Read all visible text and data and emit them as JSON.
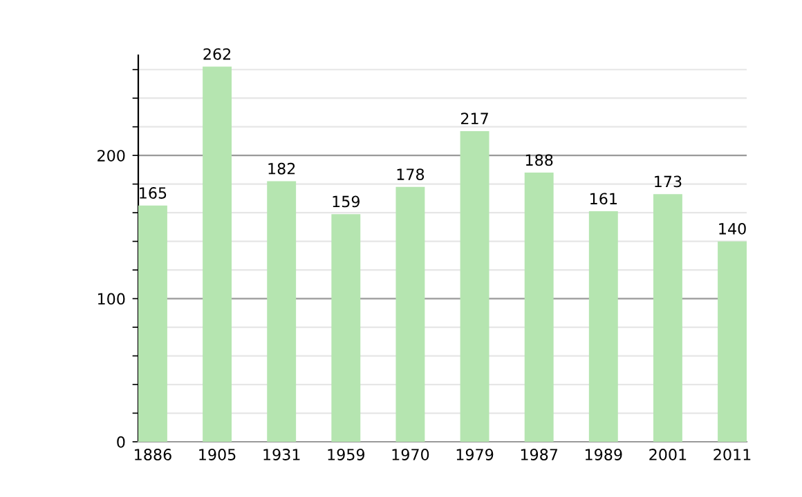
{
  "chart_data": {
    "type": "bar",
    "categories": [
      "1886",
      "1905",
      "1931",
      "1959",
      "1970",
      "1979",
      "1987",
      "1989",
      "2001",
      "2011"
    ],
    "values": [
      165,
      262,
      182,
      159,
      178,
      217,
      188,
      161,
      173,
      140
    ],
    "color": "#b5e5b0",
    "data_labels": true,
    "ylim": [
      0,
      270
    ],
    "yticks": [
      0,
      {
        "value": 20,
        "label": null
      },
      {
        "value": 40,
        "label": null
      },
      {
        "value": 60,
        "label": null
      },
      {
        "value": 80,
        "label": null
      },
      100,
      {
        "value": 120,
        "label": null
      },
      {
        "value": 140,
        "label": null
      },
      {
        "value": 160,
        "label": null
      },
      {
        "value": 180,
        "label": null
      },
      200,
      {
        "value": 220,
        "label": null
      },
      {
        "value": 240,
        "label": null
      },
      {
        "value": 260,
        "label": null
      }
    ],
    "grid": "y"
  }
}
